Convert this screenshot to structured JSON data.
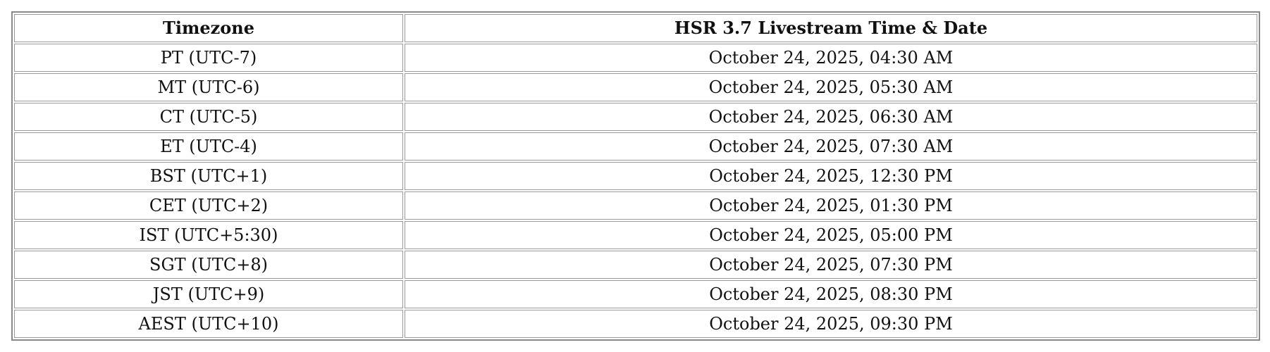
{
  "table": {
    "header": [
      "Timezone",
      "HSR 3.7 Livestream Time & Date"
    ],
    "rows": [
      [
        "PT (UTC-7)",
        "October 24, 2025, 04:30 AM"
      ],
      [
        "MT (UTC-6)",
        "October 24, 2025, 05:30 AM"
      ],
      [
        "CT (UTC-5)",
        "October 24, 2025, 06:30 AM"
      ],
      [
        "ET (UTC-4)",
        "October 24, 2025, 07:30 AM"
      ],
      [
        "BST (UTC+1)",
        "October 24, 2025, 12:30 PM"
      ],
      [
        "CET (UTC+2)",
        "October 24, 2025, 01:30 PM"
      ],
      [
        "IST (UTC+5:30)",
        "October 24, 2025, 05:00 PM"
      ],
      [
        "SGT (UTC+8)",
        "October 24, 2025, 07:30 PM"
      ],
      [
        "JST (UTC+9)",
        "October 24, 2025, 08:30 PM"
      ],
      [
        "AEST (UTC+10)",
        "October 24, 2025, 09:30 PM"
      ]
    ]
  }
}
